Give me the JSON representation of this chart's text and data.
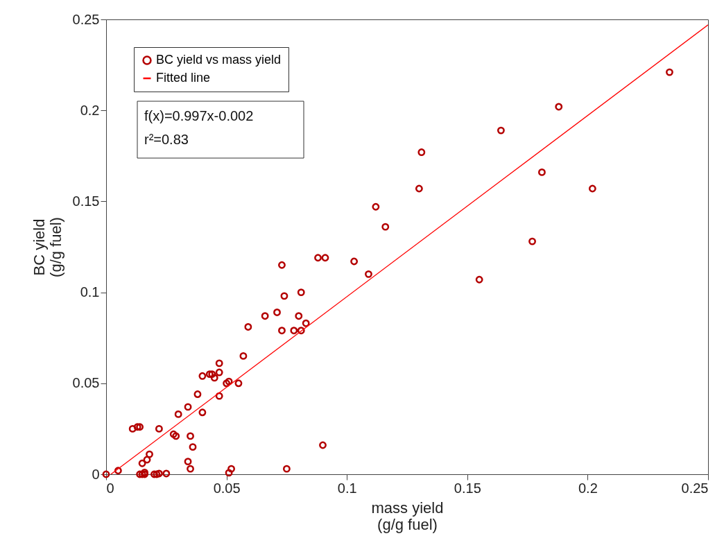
{
  "chart_data": {
    "type": "scatter",
    "xlabel": "mass yield\n(g/g fuel)",
    "ylabel": "BC yield\n(g/g fuel)",
    "xlim": [
      0,
      0.25
    ],
    "ylim": [
      0,
      0.25
    ],
    "xticks": [
      0,
      0.05,
      0.1,
      0.15,
      0.2,
      0.25
    ],
    "yticks": [
      0,
      0.05,
      0.1,
      0.15,
      0.2,
      0.25
    ],
    "grid": false,
    "legend": "top left",
    "annotations": [
      "f(x)=0.997x-0.002",
      "r²=0.83"
    ],
    "series": [
      {
        "name": "BC yield vs mass yield",
        "color": "#b40000",
        "marker": "circle",
        "x": [
          0,
          0.005,
          0.011,
          0.013,
          0.014,
          0.014,
          0.015,
          0.015,
          0.016,
          0.017,
          0.018,
          0.016,
          0.02,
          0.021,
          0.022,
          0.022,
          0.025,
          0.028,
          0.029,
          0.03,
          0.034,
          0.034,
          0.035,
          0.036,
          0.035,
          0.038,
          0.04,
          0.04,
          0.043,
          0.044,
          0.045,
          0.047,
          0.047,
          0.047,
          0.05,
          0.051,
          0.055,
          0.051,
          0.052,
          0.057,
          0.059,
          0.066,
          0.071,
          0.073,
          0.073,
          0.074,
          0.078,
          0.08,
          0.081,
          0.081,
          0.083,
          0.075,
          0.09,
          0.088,
          0.091,
          0.103,
          0.109,
          0.112,
          0.116,
          0.13,
          0.131,
          0.155,
          0.164,
          0.181,
          0.188,
          0.177,
          0.202,
          0.234
        ],
        "values": [
          0,
          0.002,
          0.025,
          0.026,
          0.026,
          0,
          0,
          0.006,
          0,
          0.008,
          0.011,
          0.001,
          0,
          0,
          0.025,
          0.0004,
          0.0004,
          0.022,
          0.021,
          0.033,
          0.037,
          0.007,
          0.021,
          0.015,
          0.003,
          0.044,
          0.034,
          0.054,
          0.055,
          0.055,
          0.053,
          0.056,
          0.061,
          0.043,
          0.05,
          0.051,
          0.05,
          0.0008,
          0.003,
          0.065,
          0.081,
          0.087,
          0.089,
          0.079,
          0.115,
          0.098,
          0.079,
          0.087,
          0.1,
          0.079,
          0.083,
          0.003,
          0.016,
          0.119,
          0.119,
          0.117,
          0.11,
          0.147,
          0.136,
          0.157,
          0.177,
          0.107,
          0.189,
          0.166,
          0.202,
          0.128,
          0.157,
          0.221
        ]
      },
      {
        "name": "Fitted line",
        "color": "#ff0000",
        "type": "line",
        "x": [
          0.002,
          0.25
        ],
        "values": [
          0,
          0.247
        ]
      }
    ]
  }
}
